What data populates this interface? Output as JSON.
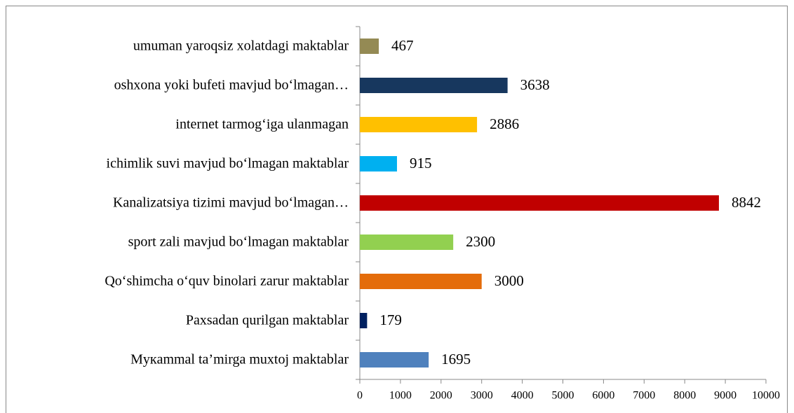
{
  "chart_data": {
    "type": "barh",
    "categories": [
      "umuman yaroqsiz xolatdagi maktablar",
      "oshxona yoki bufeti mavjud bo‘lmagan…",
      "internet tarmog‘iga ulanmagan",
      "ichimlik suvi mavjud bo‘lmagan maktablar",
      "Kanalizatsiya tizimi mavjud bo‘lmagan…",
      "sport zali mavjud bo‘lmagan maktablar",
      "Qo‘shimcha o‘quv binolari zarur maktablar",
      "Paxsadan qurilgan maktablar",
      "Mукammal ta’mirga muxtoj maktablar"
    ],
    "values": [
      467,
      3638,
      2886,
      915,
      8842,
      2300,
      3000,
      179,
      1695
    ],
    "colors": [
      "#948a54",
      "#17375e",
      "#ffc000",
      "#00b0f0",
      "#c00000",
      "#92d050",
      "#e46c0a",
      "#002060",
      "#4f81bd"
    ],
    "xlim": [
      0,
      10000
    ],
    "xticks": [
      0,
      1000,
      2000,
      3000,
      4000,
      5000,
      6000,
      7000,
      8000,
      9000,
      10000
    ]
  }
}
